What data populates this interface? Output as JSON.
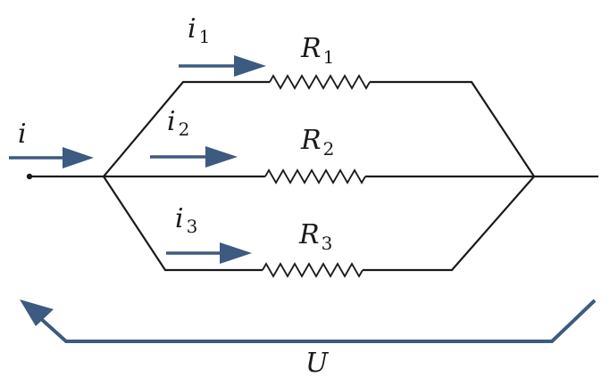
{
  "colors": {
    "wire": "#1a1a1a",
    "arrow": "#3d5a80"
  },
  "labels": {
    "i": "i",
    "i1": {
      "main": "i",
      "sub": "1"
    },
    "i2": {
      "main": "i",
      "sub": "2"
    },
    "i3": {
      "main": "i",
      "sub": "3"
    },
    "R1": {
      "main": "R",
      "sub": "1"
    },
    "R2": {
      "main": "R",
      "sub": "2"
    },
    "R3": {
      "main": "R",
      "sub": "3"
    },
    "U": "U"
  }
}
